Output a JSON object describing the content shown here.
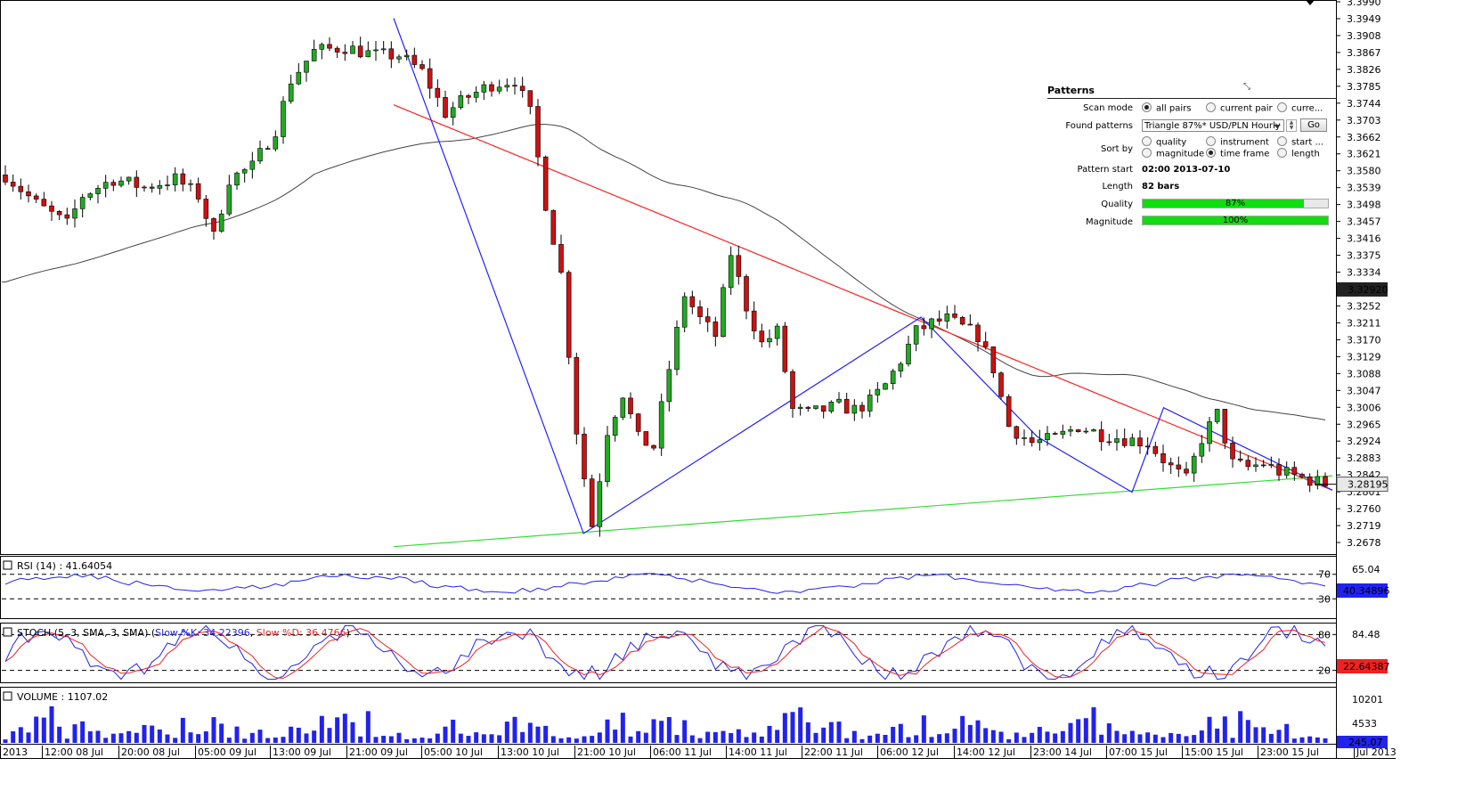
{
  "chart_data": [
    {
      "type": "candlestick",
      "symbol": "USD/PLN",
      "timeframe": "Hourly",
      "price_axis": {
        "ticks": [
          "3.3990",
          "3.3949",
          "3.3908",
          "3.3867",
          "3.3826",
          "3.3785",
          "3.3744",
          "3.3703",
          "3.3662",
          "3.3621",
          "3.3580",
          "3.3539",
          "3.3498",
          "3.3457",
          "3.3416",
          "3.3375",
          "3.3334",
          "3.3292",
          "3.3252",
          "3.3211",
          "3.3170",
          "3.3129",
          "3.3088",
          "3.3047",
          "3.3006",
          "3.2965",
          "3.2924",
          "3.2883",
          "3.2842",
          "3.2801",
          "3.2760",
          "3.2719",
          "3.2678"
        ],
        "ylim": [
          3.265,
          3.399
        ]
      },
      "time_axis_labels": [
        "2013",
        "12:00 08 Jul",
        "20:00 08 Jul",
        "05:00 09 Jul",
        "13:00 09 Jul",
        "21:00 09 Jul",
        "05:00 10 Jul",
        "13:00 10 Jul",
        "21:00 10 Jul",
        "06:00 11 Jul",
        "14:00 11 Jul",
        "22:00 11 Jul",
        "06:00 12 Jul",
        "14:00 12 Jul",
        "23:00 14 Jul",
        "07:00 15 Jul",
        "15:00 15 Jul",
        "23:00 15 Jul",
        "Jul 2013"
      ],
      "moving_average_label": "3.32920",
      "moving_average_value": 3.3292,
      "last_price_label": "3.28195",
      "last_price_value": 3.28195,
      "pattern_lines": {
        "resistance": {
          "color": "#ff2222",
          "from": [
            36,
            3.374
          ],
          "to": [
            125,
            3.2805
          ]
        },
        "support": {
          "color": "#33dd33",
          "from": [
            36,
            3.2668
          ],
          "to": [
            125,
            3.284
          ]
        },
        "zigzag": {
          "color": "#2222ff",
          "points": [
            [
              36,
              3.395
            ],
            [
              54,
              3.27
            ],
            [
              86,
              3.3225
            ],
            [
              97,
              3.2935
            ],
            [
              106,
              3.28
            ],
            [
              109,
              3.3005
            ],
            [
              125,
              3.2805
            ]
          ]
        }
      }
    },
    {
      "type": "line",
      "name": "RSI",
      "legend": "RSI (14) : 41.64054",
      "levels": [
        "70",
        "30"
      ],
      "value_label": "40.34896",
      "tick_label": "65.04",
      "ylim": [
        0,
        100
      ]
    },
    {
      "type": "line",
      "name": "STOCH",
      "legend_prefix": "STOCH (5, 3, SMA, 3, SMA)",
      "legend_k": "Slow %K: 34.22396",
      "legend_d": "Slow %D: 36.4766",
      "levels": [
        "80",
        "20"
      ],
      "value_label": "22.64387",
      "tick_label": "84.48",
      "ylim": [
        0,
        100
      ]
    },
    {
      "type": "bar",
      "name": "VOLUME",
      "legend": "VOLUME : 1107.02",
      "ticks": [
        "10201",
        "4533"
      ],
      "value_label": "245.07",
      "ylim": [
        0,
        13000
      ]
    }
  ],
  "patterns_panel": {
    "title": "Patterns",
    "scan_mode_label": "Scan mode",
    "scan_modes": [
      "all pairs",
      "current pair",
      "curre..."
    ],
    "scan_mode_selected": "all pairs",
    "found_patterns_label": "Found patterns",
    "found_patterns_value": "Triangle 87%* USD/PLN Hourly",
    "go_label": "Go",
    "sort_by_label": "Sort by",
    "sort_options": [
      "quality",
      "instrument",
      "start ...",
      "magnitude",
      "time frame",
      "length"
    ],
    "sort_selected": "time frame",
    "pattern_start_label": "Pattern start",
    "pattern_start_value": "02:00 2013-07-10",
    "length_label": "Length",
    "length_value": "82 bars",
    "quality_label": "Quality",
    "quality_value": "87%",
    "quality_fraction": 0.87,
    "magnitude_label": "Magnitude",
    "magnitude_value": "100%",
    "magnitude_fraction": 1.0
  },
  "colors": {
    "bull": "#22aa22",
    "bear": "#cc1111",
    "indicator_blue": "#2222ee",
    "indicator_red": "#ee2222",
    "volume": "#2222ee",
    "ma": "#444444"
  }
}
